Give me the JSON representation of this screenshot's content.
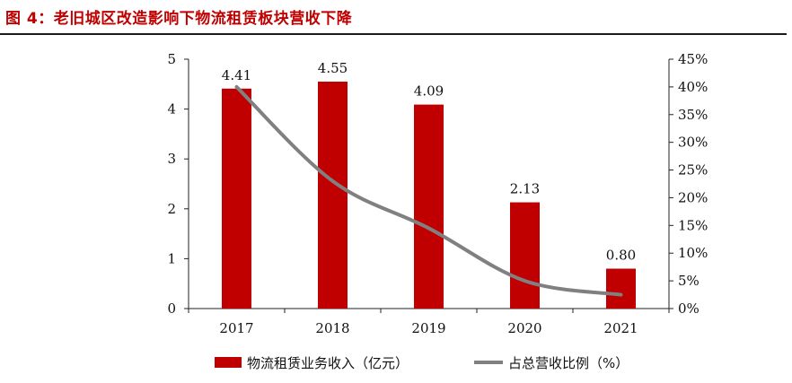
{
  "figure": {
    "title": "图 4：老旧城区改造影响下物流租赁板块营收下降"
  },
  "chart_data": {
    "type": "bar",
    "categories": [
      "2017",
      "2018",
      "2019",
      "2020",
      "2021"
    ],
    "series": [
      {
        "name": "物流租赁业务收入（亿元）",
        "type": "bar",
        "axis": "left",
        "values": [
          4.41,
          4.55,
          4.09,
          2.13,
          0.8
        ],
        "labels": [
          "4.41",
          "4.55",
          "4.09",
          "2.13",
          "0.80"
        ],
        "color": "#c00000"
      },
      {
        "name": "占总营收比例（%）",
        "type": "line",
        "axis": "right",
        "values": [
          40,
          23,
          14.5,
          5,
          2.5
        ],
        "color": "#808080"
      }
    ],
    "y_left": {
      "ylim": [
        0,
        5
      ],
      "ticks": [
        "0",
        "1",
        "2",
        "3",
        "4",
        "5"
      ]
    },
    "y_right": {
      "ylim": [
        0,
        45
      ],
      "ticks": [
        "0%",
        "5%",
        "10%",
        "15%",
        "20%",
        "25%",
        "30%",
        "35%",
        "40%",
        "45%"
      ]
    },
    "legend": {
      "position": "bottom"
    },
    "grid": false
  }
}
